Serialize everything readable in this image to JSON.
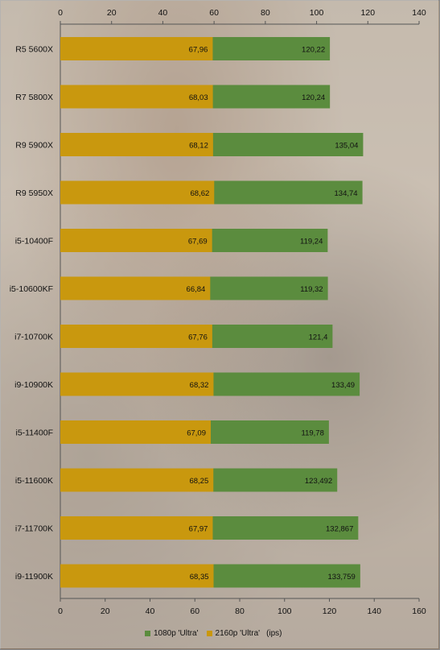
{
  "chart_data": {
    "type": "bar",
    "orientation": "horizontal",
    "stacked": "overlaid",
    "categories": [
      "R5 5600X",
      "R7 5800X",
      "R9 5900X",
      "R9 5950X",
      "i5-10400F",
      "i5-10600KF",
      "i7-10700K",
      "i9-10900K",
      "i5-11400F",
      "i5-11600K",
      "i7-11700K",
      "i9-11900K"
    ],
    "series": [
      {
        "name": "1080p 'Ultra'",
        "color": "#5b8c3e",
        "values": [
          120.22,
          120.24,
          135.04,
          134.74,
          119.24,
          119.32,
          121.4,
          133.49,
          119.78,
          123.492,
          132.867,
          133.759
        ],
        "labels": [
          "120,22",
          "120,24",
          "135,04",
          "134,74",
          "119,24",
          "119,32",
          "121,4",
          "133,49",
          "119,78",
          "123,492",
          "132,867",
          "133,759"
        ]
      },
      {
        "name": "2160p 'Ultra'",
        "color": "#c9980e",
        "values": [
          67.96,
          68.03,
          68.12,
          68.62,
          67.69,
          66.84,
          67.76,
          68.32,
          67.09,
          68.25,
          67.97,
          68.35
        ],
        "labels": [
          "67,96",
          "68,03",
          "68,12",
          "68,62",
          "67,69",
          "66,84",
          "67,76",
          "68,32",
          "67,09",
          "68,25",
          "67,97",
          "68,35"
        ]
      }
    ],
    "top_axis": {
      "range": [
        0,
        140
      ],
      "ticks": [
        0,
        20,
        40,
        60,
        80,
        100,
        120,
        140
      ]
    },
    "bottom_axis": {
      "range": [
        0,
        160
      ],
      "ticks": [
        0,
        20,
        40,
        60,
        80,
        100,
        120,
        140,
        160
      ]
    },
    "grid": false,
    "legend_position": "bottom",
    "unit_label": "(ips)"
  },
  "legend": {
    "series1": "1080p 'Ultra'",
    "series2": "2160p 'Ultra'",
    "unit": "(ips)"
  }
}
